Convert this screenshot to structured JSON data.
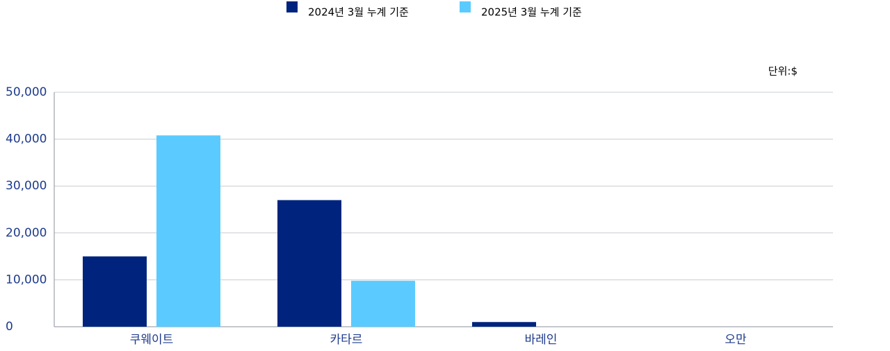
{
  "chart_data": {
    "type": "bar",
    "unit": "단위:$",
    "categories": [
      "쿠웨이트",
      "카타르",
      "바레인",
      "오만"
    ],
    "series": [
      {
        "name": "2024년 3월 누계 기준",
        "color": "#00247d",
        "values": [
          15000,
          27000,
          1000,
          0
        ]
      },
      {
        "name": "2025년 3월 누계 기준",
        "color": "#5bcbff",
        "values": [
          40800,
          9800,
          0,
          0
        ]
      }
    ],
    "ylim": [
      0,
      50000
    ],
    "yticks": [
      0,
      {
        "value": 10000,
        "label": "10,000"
      },
      {
        "value": 20000,
        "label": "20,000"
      },
      {
        "value": 30000,
        "label": "30,000"
      },
      {
        "value": 40000,
        "label": "40,000"
      },
      {
        "value": 50000,
        "label": "50,000"
      }
    ],
    "grid": true,
    "legend": "top"
  }
}
